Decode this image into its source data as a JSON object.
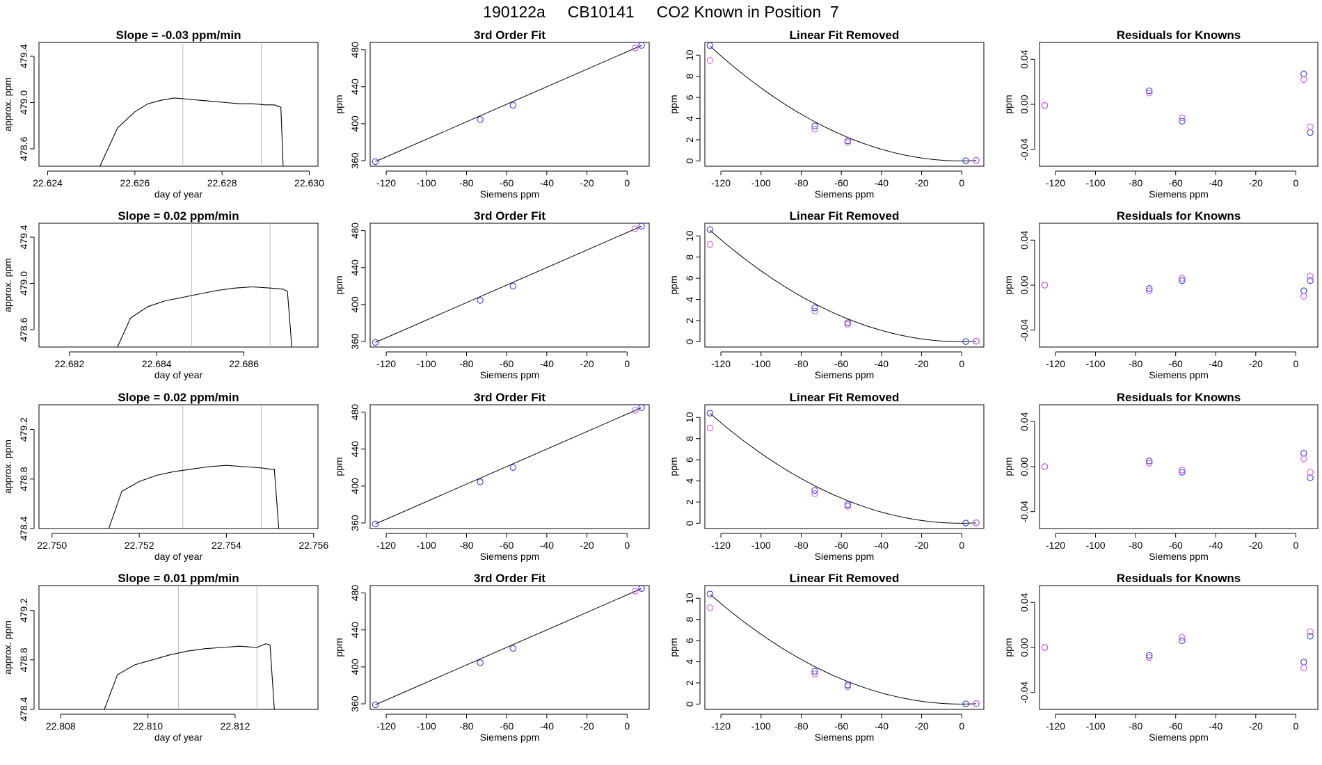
{
  "page_title": "190122a     CB10141     CO2 Known in Position  7",
  "colors": {
    "axis": "#000000",
    "trace": "#000000",
    "guide_line": "#bbbbbb",
    "known_blue": "#3a3ad6",
    "known_magenta": "#d25ae6"
  },
  "chart_data": [
    {
      "type": "line",
      "title": "Slope =  -0.03  ppm/min",
      "xlabel": "day of year",
      "ylabel": "approx. ppm",
      "xlim": [
        22.6238,
        22.6302
      ],
      "ylim": [
        478.45,
        479.52
      ],
      "xticks": [
        22.624,
        22.626,
        22.628,
        22.63
      ],
      "xtick_labels": [
        "22.624",
        "22.626",
        "22.628",
        "22.630"
      ],
      "yticks": [
        478.6,
        479.0,
        479.4
      ],
      "ytick_labels": [
        "478.6",
        "479.0",
        "479.4"
      ],
      "vlines": [
        22.6271,
        22.6289
      ],
      "x": [
        22.6252,
        22.6256,
        22.626,
        22.6263,
        22.6266,
        22.6269,
        22.6272,
        22.6275,
        22.6278,
        22.6281,
        22.6284,
        22.6287,
        22.629,
        22.6292,
        22.62935,
        22.6294
      ],
      "y": [
        478.45,
        478.78,
        478.92,
        478.99,
        479.02,
        479.04,
        479.03,
        479.02,
        479.01,
        479.0,
        478.99,
        478.99,
        478.98,
        478.98,
        478.96,
        478.45
      ]
    },
    {
      "type": "line",
      "title": "3rd Order Fit",
      "xlabel": "Siemens ppm",
      "ylabel": "ppm",
      "xlim": [
        -128,
        11
      ],
      "ylim": [
        354,
        488
      ],
      "xticks": [
        -120,
        -100,
        -80,
        -60,
        -40,
        -20,
        0
      ],
      "xtick_labels": [
        "-120",
        "-100",
        "-80",
        "-60",
        "-40",
        "-20",
        "0"
      ],
      "yticks": [
        360,
        400,
        440,
        480
      ],
      "ytick_labels": [
        "360",
        "400",
        "440",
        "480"
      ],
      "fit_x": [
        -125.4,
        7.2
      ],
      "fit_y": [
        359.0,
        484.8
      ],
      "series": [
        {
          "color": "blue",
          "x": [
            -125.4,
            -73.2,
            -56.8,
            7.2
          ],
          "y": [
            359.0,
            404.5,
            420.0,
            484.8
          ]
        },
        {
          "color": "magenta",
          "x": [
            4.0
          ],
          "y": [
            482.0
          ]
        }
      ]
    },
    {
      "type": "line",
      "title": "Linear Fit Removed",
      "xlabel": "Siemens ppm",
      "ylabel": "ppm",
      "xlim": [
        -128,
        11
      ],
      "ylim": [
        -0.5,
        11.2
      ],
      "xticks": [
        -120,
        -100,
        -80,
        -60,
        -40,
        -20,
        0
      ],
      "xtick_labels": [
        "-120",
        "-100",
        "-80",
        "-60",
        "-40",
        "-20",
        "0"
      ],
      "yticks": [
        0,
        2,
        4,
        6,
        8,
        10
      ],
      "ytick_labels": [
        "0",
        "2",
        "4",
        "6",
        "8",
        "10"
      ],
      "curve": {
        "a": 0.00069,
        "x0": 0,
        "x_from": -125.4,
        "x_to": 7.2
      },
      "series": [
        {
          "color": "blue",
          "x": [
            -125.4,
            -73.2,
            -56.8,
            2.0,
            7.2
          ],
          "y": [
            10.9,
            3.3,
            1.9,
            0.02,
            0.05
          ]
        },
        {
          "color": "magenta",
          "x": [
            -125.4,
            -73.2,
            -56.8,
            7.2
          ],
          "y": [
            9.5,
            3.0,
            1.75,
            0.05
          ]
        }
      ]
    },
    {
      "type": "scatter",
      "title": "Residuals for Knowns",
      "xlabel": "Siemens ppm",
      "ylabel": "ppm",
      "xlim": [
        -128,
        11
      ],
      "ylim": [
        -0.055,
        0.055
      ],
      "xticks": [
        -120,
        -100,
        -80,
        -60,
        -40,
        -20,
        0
      ],
      "xtick_labels": [
        "-120",
        "-100",
        "-80",
        "-60",
        "-40",
        "-20",
        "0"
      ],
      "yticks": [
        -0.04,
        0.0,
        0.04
      ],
      "ytick_labels": [
        "-0.04",
        "0.00",
        "0.04"
      ],
      "series": [
        {
          "color": "blue",
          "x": [
            -125.4,
            -73.2,
            -56.8,
            4.0,
            7.2
          ],
          "y": [
            -0.001,
            0.012,
            -0.015,
            0.027,
            -0.025
          ]
        },
        {
          "color": "magenta",
          "x": [
            -125.4,
            -73.2,
            -56.8,
            4.0,
            7.2
          ],
          "y": [
            -0.001,
            0.01,
            -0.012,
            0.022,
            -0.02
          ]
        }
      ]
    },
    {
      "type": "line",
      "title": "Slope =  0.02  ppm/min",
      "xlabel": "day of year",
      "ylabel": "approx. ppm",
      "xlim": [
        22.6813,
        22.6877
      ],
      "ylim": [
        478.45,
        479.52
      ],
      "xticks": [
        22.682,
        22.684,
        22.686
      ],
      "xtick_labels": [
        "22.682",
        "22.684",
        "22.686"
      ],
      "yticks": [
        478.6,
        479.0,
        479.4
      ],
      "ytick_labels": [
        "478.6",
        "479.0",
        "479.4"
      ],
      "vlines": [
        22.6848,
        22.6866
      ],
      "x": [
        22.6831,
        22.6834,
        22.6838,
        22.6842,
        22.6846,
        22.685,
        22.6854,
        22.6858,
        22.6862,
        22.6866,
        22.6869,
        22.687,
        22.6871
      ],
      "y": [
        478.45,
        478.7,
        478.8,
        478.85,
        478.88,
        478.91,
        478.94,
        478.96,
        478.97,
        478.96,
        478.95,
        478.93,
        478.45
      ]
    },
    {
      "type": "line",
      "title": "3rd Order Fit",
      "xlabel": "Siemens ppm",
      "ylabel": "ppm",
      "xlim": [
        -128,
        11
      ],
      "ylim": [
        354,
        488
      ],
      "xticks": [
        -120,
        -100,
        -80,
        -60,
        -40,
        -20,
        0
      ],
      "xtick_labels": [
        "-120",
        "-100",
        "-80",
        "-60",
        "-40",
        "-20",
        "0"
      ],
      "yticks": [
        360,
        400,
        440,
        480
      ],
      "ytick_labels": [
        "360",
        "400",
        "440",
        "480"
      ],
      "fit_x": [
        -125.4,
        7.2
      ],
      "fit_y": [
        359.0,
        484.8
      ],
      "series": [
        {
          "color": "blue",
          "x": [
            -125.4,
            -73.2,
            -56.8,
            7.2
          ],
          "y": [
            359.0,
            404.5,
            420.0,
            484.8
          ]
        },
        {
          "color": "magenta",
          "x": [
            4.0
          ],
          "y": [
            482.0
          ]
        }
      ]
    },
    {
      "type": "line",
      "title": "Linear Fit Removed",
      "xlabel": "Siemens ppm",
      "ylabel": "ppm",
      "xlim": [
        -128,
        11
      ],
      "ylim": [
        -0.5,
        11.2
      ],
      "xticks": [
        -120,
        -100,
        -80,
        -60,
        -40,
        -20,
        0
      ],
      "xtick_labels": [
        "-120",
        "-100",
        "-80",
        "-60",
        "-40",
        "-20",
        "0"
      ],
      "yticks": [
        0,
        2,
        4,
        6,
        8,
        10
      ],
      "ytick_labels": [
        "0",
        "2",
        "4",
        "6",
        "8",
        "10"
      ],
      "curve": {
        "a": 0.00067,
        "x0": 0,
        "x_from": -125.4,
        "x_to": 7.2
      },
      "series": [
        {
          "color": "blue",
          "x": [
            -125.4,
            -73.2,
            -56.8,
            2.0,
            7.2
          ],
          "y": [
            10.6,
            3.2,
            1.8,
            0.02,
            0.05
          ]
        },
        {
          "color": "magenta",
          "x": [
            -125.4,
            -73.2,
            -56.8,
            7.2
          ],
          "y": [
            9.2,
            2.9,
            1.65,
            0.05
          ]
        }
      ]
    },
    {
      "type": "scatter",
      "title": "Residuals for Knowns",
      "xlabel": "Siemens ppm",
      "ylabel": "ppm",
      "xlim": [
        -128,
        11
      ],
      "ylim": [
        -0.055,
        0.055
      ],
      "xticks": [
        -120,
        -100,
        -80,
        -60,
        -40,
        -20,
        0
      ],
      "xtick_labels": [
        "-120",
        "-100",
        "-80",
        "-60",
        "-40",
        "-20",
        "0"
      ],
      "yticks": [
        -0.04,
        0.0,
        0.04
      ],
      "ytick_labels": [
        "-0.04",
        "0.00",
        "0.04"
      ],
      "series": [
        {
          "color": "blue",
          "x": [
            -125.4,
            -73.2,
            -56.8,
            4.0,
            7.2
          ],
          "y": [
            0.0,
            -0.003,
            0.004,
            -0.005,
            0.004
          ]
        },
        {
          "color": "magenta",
          "x": [
            -125.4,
            -73.2,
            -56.8,
            4.0,
            7.2
          ],
          "y": [
            0.0,
            -0.005,
            0.006,
            -0.01,
            0.008
          ]
        }
      ]
    },
    {
      "type": "line",
      "title": "Slope =  0.02  ppm/min",
      "xlabel": "day of year",
      "ylabel": "approx. ppm",
      "xlim": [
        22.7497,
        22.7561
      ],
      "ylim": [
        478.4,
        479.4
      ],
      "xticks": [
        22.75,
        22.752,
        22.754,
        22.756
      ],
      "xtick_labels": [
        "22.750",
        "22.752",
        "22.754",
        "22.756"
      ],
      "yticks": [
        478.4,
        478.8,
        479.2
      ],
      "ytick_labels": [
        "478.4",
        "478.8",
        "479.2"
      ],
      "vlines": [
        22.753,
        22.7548
      ],
      "x": [
        22.7513,
        22.7516,
        22.752,
        22.7524,
        22.7528,
        22.7532,
        22.7536,
        22.754,
        22.7544,
        22.7548,
        22.755,
        22.7551,
        22.7552
      ],
      "y": [
        478.4,
        478.7,
        478.78,
        478.83,
        478.86,
        478.88,
        478.9,
        478.91,
        478.9,
        478.89,
        478.88,
        478.88,
        478.4
      ]
    },
    {
      "type": "line",
      "title": "3rd Order Fit",
      "xlabel": "Siemens ppm",
      "ylabel": "ppm",
      "xlim": [
        -128,
        11
      ],
      "ylim": [
        354,
        488
      ],
      "xticks": [
        -120,
        -100,
        -80,
        -60,
        -40,
        -20,
        0
      ],
      "xtick_labels": [
        "-120",
        "-100",
        "-80",
        "-60",
        "-40",
        "-20",
        "0"
      ],
      "yticks": [
        360,
        400,
        440,
        480
      ],
      "ytick_labels": [
        "360",
        "400",
        "440",
        "480"
      ],
      "fit_x": [
        -125.4,
        7.2
      ],
      "fit_y": [
        359.0,
        484.8
      ],
      "series": [
        {
          "color": "blue",
          "x": [
            -125.4,
            -73.2,
            -56.8,
            7.2
          ],
          "y": [
            359.0,
            404.5,
            420.0,
            484.8
          ]
        },
        {
          "color": "magenta",
          "x": [
            4.0
          ],
          "y": [
            482.0
          ]
        }
      ]
    },
    {
      "type": "line",
      "title": "Linear Fit Removed",
      "xlabel": "Siemens ppm",
      "ylabel": "ppm",
      "xlim": [
        -128,
        11
      ],
      "ylim": [
        -0.5,
        11.2
      ],
      "xticks": [
        -120,
        -100,
        -80,
        -60,
        -40,
        -20,
        0
      ],
      "xtick_labels": [
        "-120",
        "-100",
        "-80",
        "-60",
        "-40",
        "-20",
        "0"
      ],
      "yticks": [
        0,
        2,
        4,
        6,
        8,
        10
      ],
      "ytick_labels": [
        "0",
        "2",
        "4",
        "6",
        "8",
        "10"
      ],
      "curve": {
        "a": 0.00066,
        "x0": 0,
        "x_from": -125.4,
        "x_to": 7.2
      },
      "series": [
        {
          "color": "blue",
          "x": [
            -125.4,
            -73.2,
            -56.8,
            2.0,
            7.2
          ],
          "y": [
            10.4,
            3.1,
            1.75,
            0.02,
            0.05
          ]
        },
        {
          "color": "magenta",
          "x": [
            -125.4,
            -73.2,
            -56.8,
            7.2
          ],
          "y": [
            9.0,
            2.8,
            1.6,
            0.05
          ]
        }
      ]
    },
    {
      "type": "scatter",
      "title": "Residuals for Knowns",
      "xlabel": "Siemens ppm",
      "ylabel": "ppm",
      "xlim": [
        -128,
        11
      ],
      "ylim": [
        -0.055,
        0.055
      ],
      "xticks": [
        -120,
        -100,
        -80,
        -60,
        -40,
        -20,
        0
      ],
      "xtick_labels": [
        "-120",
        "-100",
        "-80",
        "-60",
        "-40",
        "-20",
        "0"
      ],
      "yticks": [
        -0.04,
        0.0,
        0.04
      ],
      "ytick_labels": [
        "-0.04",
        "0.00",
        "0.04"
      ],
      "series": [
        {
          "color": "blue",
          "x": [
            -125.4,
            -73.2,
            -56.8,
            4.0,
            7.2
          ],
          "y": [
            0.0,
            0.005,
            -0.005,
            0.012,
            -0.01
          ]
        },
        {
          "color": "magenta",
          "x": [
            -125.4,
            -73.2,
            -56.8,
            4.0,
            7.2
          ],
          "y": [
            0.0,
            0.003,
            -0.003,
            0.007,
            -0.005
          ]
        }
      ]
    },
    {
      "type": "line",
      "title": "Slope =  0.01  ppm/min",
      "xlabel": "day of year",
      "ylabel": "approx. ppm",
      "xlim": [
        22.8075,
        22.8139
      ],
      "ylim": [
        478.4,
        479.4
      ],
      "xticks": [
        22.808,
        22.81,
        22.812
      ],
      "xtick_labels": [
        "22.808",
        "22.810",
        "22.812"
      ],
      "yticks": [
        478.4,
        478.8,
        479.2
      ],
      "ytick_labels": [
        "478.4",
        "478.8",
        "479.2"
      ],
      "vlines": [
        22.8107,
        22.8125
      ],
      "x": [
        22.809,
        22.8093,
        22.8097,
        22.8101,
        22.8105,
        22.8109,
        22.8113,
        22.8117,
        22.8121,
        22.8125,
        22.8127,
        22.8128,
        22.8129
      ],
      "y": [
        478.4,
        478.68,
        478.76,
        478.8,
        478.84,
        478.87,
        478.89,
        478.9,
        478.91,
        478.9,
        478.93,
        478.92,
        478.4
      ]
    },
    {
      "type": "line",
      "title": "3rd Order Fit",
      "xlabel": "Siemens ppm",
      "ylabel": "ppm",
      "xlim": [
        -128,
        11
      ],
      "ylim": [
        354,
        488
      ],
      "xticks": [
        -120,
        -100,
        -80,
        -60,
        -40,
        -20,
        0
      ],
      "xtick_labels": [
        "-120",
        "-100",
        "-80",
        "-60",
        "-40",
        "-20",
        "0"
      ],
      "yticks": [
        360,
        400,
        440,
        480
      ],
      "ytick_labels": [
        "360",
        "400",
        "440",
        "480"
      ],
      "fit_x": [
        -125.4,
        7.2
      ],
      "fit_y": [
        359.0,
        484.8
      ],
      "series": [
        {
          "color": "blue",
          "x": [
            -125.4,
            -73.2,
            -56.8,
            7.2
          ],
          "y": [
            359.0,
            404.5,
            420.0,
            484.8
          ]
        },
        {
          "color": "magenta",
          "x": [
            4.0
          ],
          "y": [
            482.0
          ]
        }
      ]
    },
    {
      "type": "line",
      "title": "Linear Fit Removed",
      "xlabel": "Siemens ppm",
      "ylabel": "ppm",
      "xlim": [
        -128,
        11
      ],
      "ylim": [
        -0.5,
        11.2
      ],
      "xticks": [
        -120,
        -100,
        -80,
        -60,
        -40,
        -20,
        0
      ],
      "xtick_labels": [
        "-120",
        "-100",
        "-80",
        "-60",
        "-40",
        "-20",
        "0"
      ],
      "yticks": [
        0,
        2,
        4,
        6,
        8,
        10
      ],
      "ytick_labels": [
        "0",
        "2",
        "4",
        "6",
        "8",
        "10"
      ],
      "curve": {
        "a": 0.00066,
        "x0": 0,
        "x_from": -125.4,
        "x_to": 7.2
      },
      "series": [
        {
          "color": "blue",
          "x": [
            -125.4,
            -73.2,
            -56.8,
            2.0,
            7.2
          ],
          "y": [
            10.4,
            3.1,
            1.8,
            0.02,
            0.05
          ]
        },
        {
          "color": "magenta",
          "x": [
            -125.4,
            -73.2,
            -56.8,
            7.2
          ],
          "y": [
            9.1,
            2.85,
            1.65,
            0.05
          ]
        }
      ]
    },
    {
      "type": "scatter",
      "title": "Residuals for Knowns",
      "xlabel": "Siemens ppm",
      "ylabel": "ppm",
      "xlim": [
        -128,
        11
      ],
      "ylim": [
        -0.055,
        0.055
      ],
      "xticks": [
        -120,
        -100,
        -80,
        -60,
        -40,
        -20,
        0
      ],
      "xtick_labels": [
        "-120",
        "-100",
        "-80",
        "-60",
        "-40",
        "-20",
        "0"
      ],
      "yticks": [
        -0.04,
        0.0,
        0.04
      ],
      "ytick_labels": [
        "-0.04",
        "0.00",
        "0.04"
      ],
      "series": [
        {
          "color": "blue",
          "x": [
            -125.4,
            -73.2,
            -56.8,
            4.0,
            7.2
          ],
          "y": [
            0.0,
            -0.007,
            0.006,
            -0.013,
            0.01
          ]
        },
        {
          "color": "magenta",
          "x": [
            -125.4,
            -73.2,
            -56.8,
            4.0,
            7.2
          ],
          "y": [
            0.0,
            -0.009,
            0.009,
            -0.018,
            0.014
          ]
        }
      ]
    }
  ]
}
